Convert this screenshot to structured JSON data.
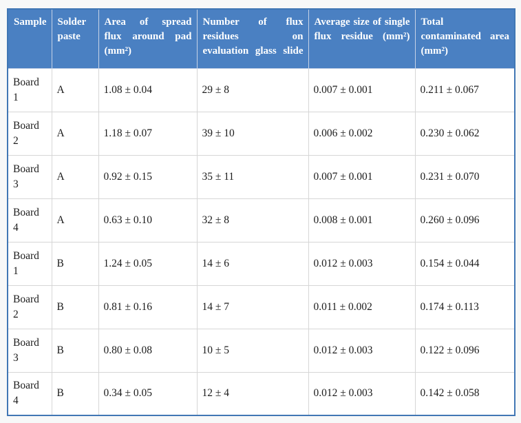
{
  "colors": {
    "header_bg": "#4a80c2",
    "header_text": "#ffffff",
    "outer_border": "#4076b4",
    "header_grid_line": "#c7d3e6",
    "body_grid_line": "#d6d6d6",
    "body_text": "#1b1b1b",
    "page_bg": "#f7f8f8"
  },
  "table": {
    "headers": [
      {
        "id": "sample",
        "label": "Sample"
      },
      {
        "id": "paste",
        "label": "Solder\npaste"
      },
      {
        "id": "area",
        "label": "Area of spread\nflux around pad\n(mm²)"
      },
      {
        "id": "residues",
        "label": "Number of flux\nresidues on\nevaluation glass slide"
      },
      {
        "id": "avg",
        "label": "Average size of single\nflux residue (mm²)"
      },
      {
        "id": "total",
        "label": "Total\ncontaminated area\n(mm²)"
      }
    ],
    "row_keys": [
      "sample",
      "paste",
      "area",
      "residues",
      "avg",
      "total"
    ],
    "rows": [
      {
        "sample": "Board 1",
        "paste": "A",
        "area": "1.08 ± 0.04",
        "residues": "29 ± 8",
        "avg": "0.007 ± 0.001",
        "total": "0.211 ± 0.067"
      },
      {
        "sample": "Board 2",
        "paste": "A",
        "area": "1.18 ± 0.07",
        "residues": "39 ± 10",
        "avg": "0.006 ± 0.002",
        "total": "0.230 ± 0.062"
      },
      {
        "sample": "Board 3",
        "paste": "A",
        "area": "0.92 ± 0.15",
        "residues": "35 ± 11",
        "avg": "0.007 ± 0.001",
        "total": "0.231 ± 0.070"
      },
      {
        "sample": "Board 4",
        "paste": "A",
        "area": "0.63 ± 0.10",
        "residues": "32 ± 8",
        "avg": "0.008 ± 0.001",
        "total": "0.260 ± 0.096"
      },
      {
        "sample": "Board 1",
        "paste": "B",
        "area": "1.24 ± 0.05",
        "residues": "14 ± 6",
        "avg": "0.012 ± 0.003",
        "total": "0.154 ± 0.044"
      },
      {
        "sample": "Board 2",
        "paste": "B",
        "area": "0.81 ± 0.16",
        "residues": "14 ± 7",
        "avg": "0.011 ± 0.002",
        "total": "0.174 ± 0.113"
      },
      {
        "sample": "Board 3",
        "paste": "B",
        "area": "0.80 ± 0.08",
        "residues": "10 ± 5",
        "avg": "0.012 ± 0.003",
        "total": "0.122 ± 0.096"
      },
      {
        "sample": "Board 4",
        "paste": "B",
        "area": "0.34 ± 0.05",
        "residues": "12 ± 4",
        "avg": "0.012 ± 0.003",
        "total": "0.142 ± 0.058"
      }
    ]
  }
}
